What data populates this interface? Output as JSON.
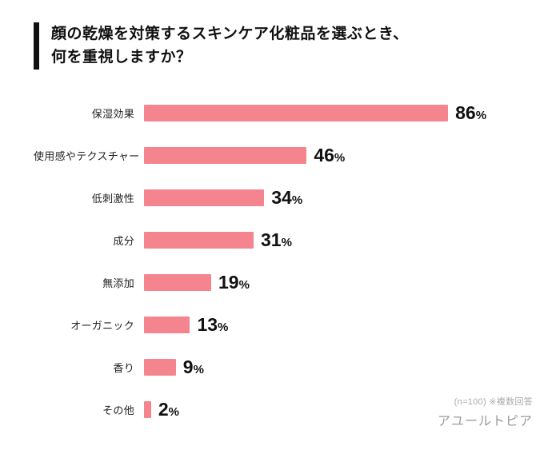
{
  "title": {
    "line1": "顔の乾燥を対策するスキンケア化粧品を選ぶとき、",
    "line2": "何を重視しますか？"
  },
  "chart_data": {
    "type": "bar",
    "orientation": "horizontal",
    "title": "顔の乾燥を対策するスキンケア化粧品を選ぶとき、何を重視しますか？",
    "categories": [
      "保湿効果",
      "使用感やテクスチャー",
      "低刺激性",
      "成分",
      "無添加",
      "オーガニック",
      "香り",
      "その他"
    ],
    "values": [
      86,
      46,
      34,
      31,
      19,
      13,
      9,
      2
    ],
    "unit": "%",
    "xlim": [
      0,
      100
    ],
    "grid": false,
    "legend": "none",
    "bar_color": "#f4858e",
    "value_label_format": "{value}%"
  },
  "footer": {
    "note": "(n=100) ※複数回答",
    "brand": "アユールトピア"
  }
}
